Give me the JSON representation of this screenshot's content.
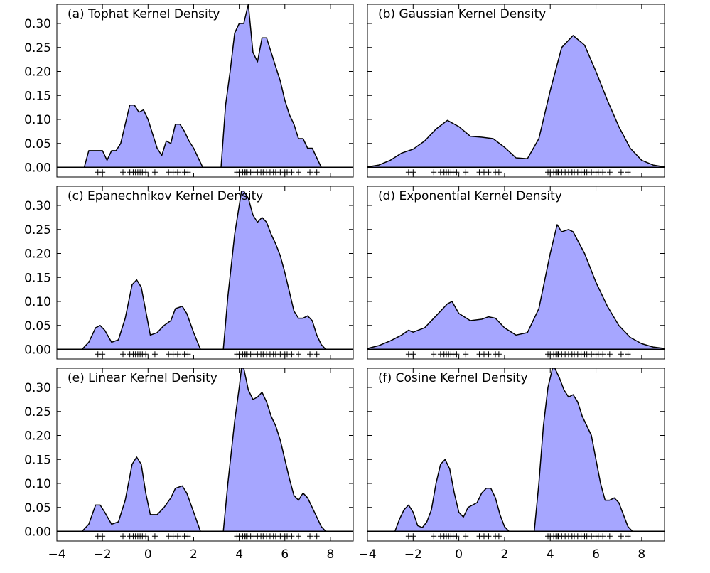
{
  "chart_data": [
    {
      "type": "area",
      "title": "(a) Tophat Kernel Density",
      "xlim": [
        -4,
        9
      ],
      "ylim": [
        -0.02,
        0.34
      ],
      "fill_color": "#a6a6ff",
      "line_color": "#000000",
      "x": [
        -3.0,
        -2.8,
        -2.6,
        -2.4,
        -2.2,
        -2.0,
        -1.8,
        -1.6,
        -1.4,
        -1.2,
        -1.0,
        -0.8,
        -0.6,
        -0.4,
        -0.2,
        0.0,
        0.2,
        0.4,
        0.6,
        0.8,
        1.0,
        1.2,
        1.4,
        1.6,
        1.8,
        2.0,
        2.2,
        2.4,
        2.6,
        2.8,
        3.0,
        3.2,
        3.4,
        3.6,
        3.8,
        4.0,
        4.2,
        4.4,
        4.6,
        4.8,
        5.0,
        5.2,
        5.4,
        5.6,
        5.8,
        6.0,
        6.2,
        6.4,
        6.6,
        6.8,
        7.0,
        7.2,
        7.4,
        7.6,
        7.8,
        8.0
      ],
      "y": [
        0.0,
        0.0,
        0.035,
        0.035,
        0.035,
        0.035,
        0.015,
        0.035,
        0.035,
        0.05,
        0.09,
        0.13,
        0.13,
        0.115,
        0.12,
        0.1,
        0.07,
        0.04,
        0.025,
        0.055,
        0.05,
        0.09,
        0.09,
        0.075,
        0.055,
        0.04,
        0.02,
        0.0,
        0.0,
        0.0,
        0.0,
        0.0,
        0.13,
        0.2,
        0.28,
        0.3,
        0.3,
        0.34,
        0.24,
        0.22,
        0.27,
        0.27,
        0.24,
        0.21,
        0.18,
        0.14,
        0.11,
        0.09,
        0.06,
        0.06,
        0.04,
        0.04,
        0.02,
        0.0,
        0.0,
        0.0
      ]
    },
    {
      "type": "area",
      "title": "(b) Gaussian Kernel Density",
      "xlim": [
        -4,
        9
      ],
      "ylim": [
        -0.02,
        0.34
      ],
      "fill_color": "#a6a6ff",
      "line_color": "#000000",
      "x": [
        -4.0,
        -3.5,
        -3.0,
        -2.5,
        -2.0,
        -1.5,
        -1.0,
        -0.5,
        0.0,
        0.5,
        1.0,
        1.5,
        2.0,
        2.5,
        3.0,
        3.5,
        4.0,
        4.5,
        5.0,
        5.5,
        6.0,
        6.5,
        7.0,
        7.5,
        8.0,
        8.5,
        9.0
      ],
      "y": [
        0.001,
        0.005,
        0.015,
        0.03,
        0.038,
        0.055,
        0.08,
        0.098,
        0.085,
        0.065,
        0.063,
        0.06,
        0.042,
        0.02,
        0.018,
        0.06,
        0.16,
        0.25,
        0.275,
        0.255,
        0.2,
        0.14,
        0.085,
        0.04,
        0.015,
        0.005,
        0.001
      ]
    },
    {
      "type": "area",
      "title": "(c) Epanechnikov Kernel Density",
      "xlim": [
        -4,
        9
      ],
      "ylim": [
        -0.02,
        0.34
      ],
      "fill_color": "#a6a6ff",
      "line_color": "#000000",
      "x": [
        -2.9,
        -2.6,
        -2.3,
        -2.1,
        -1.9,
        -1.6,
        -1.3,
        -1.0,
        -0.7,
        -0.5,
        -0.3,
        -0.1,
        0.1,
        0.4,
        0.7,
        1.0,
        1.2,
        1.5,
        1.7,
        2.0,
        2.3,
        2.6,
        3.0,
        3.3,
        3.5,
        3.8,
        4.0,
        4.1,
        4.2,
        4.4,
        4.6,
        4.8,
        5.0,
        5.2,
        5.4,
        5.6,
        5.8,
        6.0,
        6.2,
        6.4,
        6.6,
        6.8,
        7.0,
        7.2,
        7.4,
        7.6,
        7.8
      ],
      "y": [
        0.0,
        0.015,
        0.045,
        0.05,
        0.04,
        0.015,
        0.02,
        0.065,
        0.135,
        0.145,
        0.13,
        0.08,
        0.03,
        0.035,
        0.05,
        0.06,
        0.085,
        0.09,
        0.075,
        0.035,
        0.0,
        0.0,
        0.0,
        0.0,
        0.11,
        0.24,
        0.3,
        0.33,
        0.33,
        0.315,
        0.28,
        0.265,
        0.275,
        0.265,
        0.24,
        0.22,
        0.195,
        0.16,
        0.12,
        0.08,
        0.065,
        0.065,
        0.07,
        0.06,
        0.03,
        0.01,
        0.0
      ]
    },
    {
      "type": "area",
      "title": "(d) Exponential Kernel Density",
      "xlim": [
        -4,
        9
      ],
      "ylim": [
        -0.02,
        0.34
      ],
      "fill_color": "#a6a6ff",
      "line_color": "#000000",
      "x": [
        -4.0,
        -3.5,
        -3.0,
        -2.5,
        -2.2,
        -2.0,
        -1.5,
        -1.0,
        -0.5,
        -0.3,
        0.0,
        0.5,
        1.0,
        1.3,
        1.6,
        2.0,
        2.5,
        3.0,
        3.5,
        4.0,
        4.3,
        4.5,
        4.8,
        5.0,
        5.5,
        6.0,
        6.5,
        7.0,
        7.5,
        8.0,
        8.5,
        9.0
      ],
      "y": [
        0.002,
        0.008,
        0.018,
        0.03,
        0.04,
        0.036,
        0.045,
        0.07,
        0.095,
        0.1,
        0.075,
        0.06,
        0.063,
        0.068,
        0.065,
        0.045,
        0.03,
        0.035,
        0.085,
        0.2,
        0.26,
        0.245,
        0.25,
        0.245,
        0.2,
        0.14,
        0.09,
        0.05,
        0.025,
        0.012,
        0.005,
        0.002
      ]
    },
    {
      "type": "area",
      "title": "(e) Linear Kernel Density",
      "xlim": [
        -4,
        9
      ],
      "ylim": [
        -0.02,
        0.34
      ],
      "fill_color": "#a6a6ff",
      "line_color": "#000000",
      "x": [
        -2.9,
        -2.6,
        -2.3,
        -2.1,
        -1.9,
        -1.6,
        -1.3,
        -1.0,
        -0.7,
        -0.5,
        -0.3,
        -0.1,
        0.1,
        0.4,
        0.7,
        1.0,
        1.2,
        1.5,
        1.7,
        2.0,
        2.3,
        2.6,
        3.0,
        3.3,
        3.5,
        3.8,
        4.0,
        4.1,
        4.2,
        4.4,
        4.6,
        4.8,
        5.0,
        5.2,
        5.4,
        5.6,
        5.8,
        6.0,
        6.2,
        6.4,
        6.6,
        6.8,
        7.0,
        7.2,
        7.4,
        7.6,
        7.8
      ],
      "y": [
        0.0,
        0.015,
        0.055,
        0.055,
        0.04,
        0.015,
        0.02,
        0.065,
        0.14,
        0.155,
        0.14,
        0.08,
        0.035,
        0.035,
        0.05,
        0.07,
        0.09,
        0.095,
        0.08,
        0.04,
        0.0,
        0.0,
        0.0,
        0.0,
        0.1,
        0.23,
        0.3,
        0.34,
        0.34,
        0.295,
        0.275,
        0.28,
        0.29,
        0.27,
        0.24,
        0.22,
        0.19,
        0.15,
        0.11,
        0.075,
        0.065,
        0.08,
        0.07,
        0.05,
        0.03,
        0.01,
        0.0
      ]
    },
    {
      "type": "area",
      "title": "(f) Cosine Kernel Density",
      "xlim": [
        -4,
        9
      ],
      "ylim": [
        -0.02,
        0.34
      ],
      "fill_color": "#a6a6ff",
      "line_color": "#000000",
      "x": [
        -2.8,
        -2.6,
        -2.4,
        -2.2,
        -2.0,
        -1.8,
        -1.6,
        -1.4,
        -1.2,
        -1.0,
        -0.8,
        -0.6,
        -0.4,
        -0.2,
        0.0,
        0.2,
        0.4,
        0.6,
        0.8,
        1.0,
        1.2,
        1.4,
        1.6,
        1.8,
        2.0,
        2.2,
        2.4,
        2.6,
        3.0,
        3.3,
        3.5,
        3.7,
        3.9,
        4.1,
        4.2,
        4.4,
        4.6,
        4.8,
        5.0,
        5.2,
        5.4,
        5.6,
        5.8,
        6.0,
        6.2,
        6.4,
        6.6,
        6.8,
        7.0,
        7.2,
        7.4,
        7.6
      ],
      "y": [
        0.0,
        0.025,
        0.045,
        0.055,
        0.04,
        0.012,
        0.008,
        0.02,
        0.045,
        0.1,
        0.14,
        0.15,
        0.13,
        0.08,
        0.04,
        0.03,
        0.05,
        0.055,
        0.06,
        0.08,
        0.09,
        0.09,
        0.07,
        0.035,
        0.01,
        0.0,
        0.0,
        0.0,
        0.0,
        0.0,
        0.1,
        0.22,
        0.3,
        0.34,
        0.34,
        0.32,
        0.295,
        0.28,
        0.285,
        0.27,
        0.24,
        0.22,
        0.2,
        0.15,
        0.1,
        0.065,
        0.065,
        0.07,
        0.06,
        0.035,
        0.01,
        0.0
      ]
    }
  ],
  "samples": [
    -2.2,
    -2.0,
    -1.1,
    -0.8,
    -0.65,
    -0.55,
    -0.45,
    -0.35,
    -0.25,
    -0.1,
    0.3,
    0.9,
    1.1,
    1.3,
    1.6,
    1.75,
    3.9,
    4.0,
    4.15,
    4.25,
    4.3,
    4.35,
    4.5,
    4.65,
    4.8,
    4.95,
    5.05,
    5.2,
    5.35,
    5.5,
    5.6,
    5.8,
    6.0,
    6.1,
    6.3,
    6.6,
    7.1,
    7.4
  ],
  "axes": {
    "yticks": [
      "0.00",
      "0.05",
      "0.10",
      "0.15",
      "0.20",
      "0.25",
      "0.30"
    ],
    "xticks": [
      "−4",
      "−2",
      "0",
      "2",
      "4",
      "6",
      "8"
    ]
  }
}
